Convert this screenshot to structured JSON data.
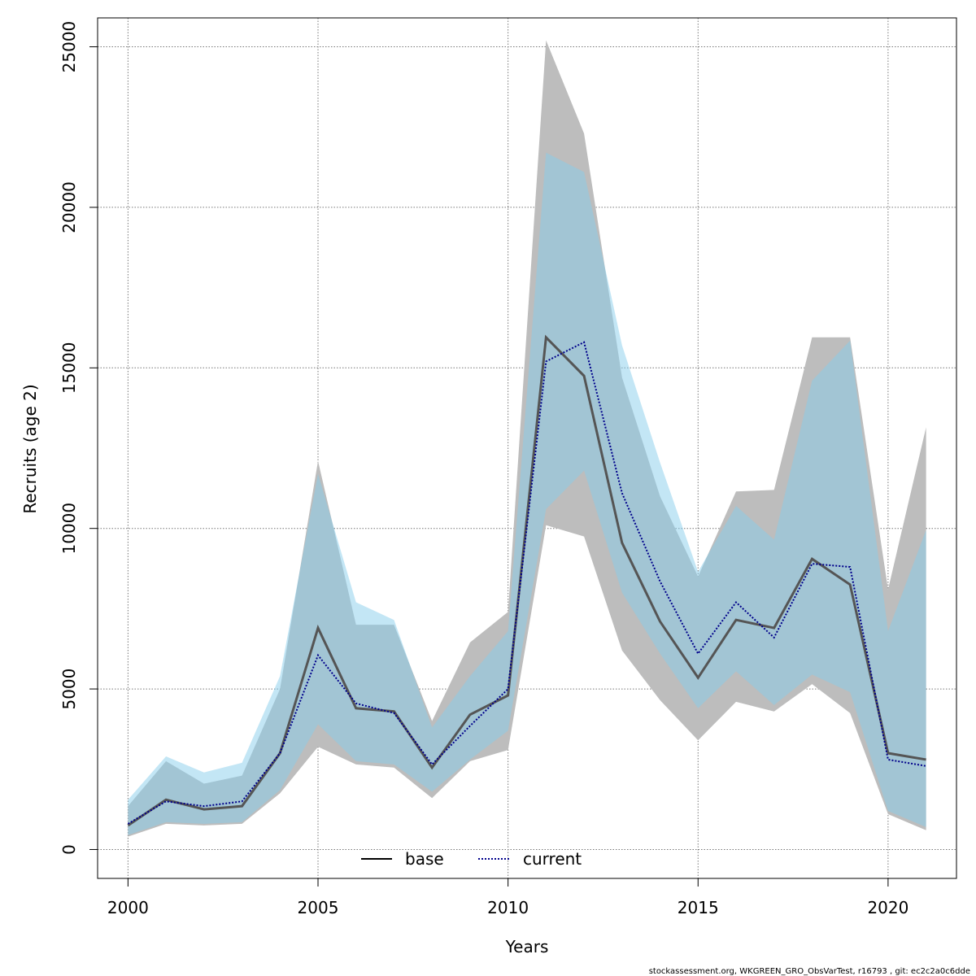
{
  "chart_data": {
    "type": "line",
    "xlabel": "Years",
    "ylabel": "Recruits (age 2)",
    "xlim": [
      1999.2,
      2021.8
    ],
    "ylim": [
      -900,
      25900
    ],
    "x_ticks": [
      2000,
      2005,
      2010,
      2015,
      2020
    ],
    "y_ticks": [
      0,
      5000,
      10000,
      15000,
      20000,
      25000
    ],
    "grid": true,
    "legend_position": "bottom-center",
    "x": [
      2000,
      2001,
      2002,
      2003,
      2004,
      2005,
      2006,
      2007,
      2008,
      2009,
      2010,
      2011,
      2012,
      2013,
      2014,
      2015,
      2016,
      2017,
      2018,
      2019,
      2020,
      2021
    ],
    "series": [
      {
        "name": "base",
        "line_style": "solid",
        "line_color": "#555555",
        "band_color": "#bdbdbd",
        "values": [
          750,
          1550,
          1250,
          1350,
          3000,
          6900,
          4400,
          4300,
          2550,
          4200,
          4800,
          15950,
          14750,
          9550,
          7100,
          5350,
          7150,
          6900,
          9050,
          8250,
          3000,
          2800
        ],
        "lower": [
          400,
          800,
          750,
          800,
          1750,
          3200,
          2650,
          2550,
          1600,
          2750,
          3100,
          10100,
          9750,
          6200,
          4650,
          3400,
          4600,
          4300,
          5150,
          4250,
          1100,
          600
        ],
        "upper": [
          1350,
          2750,
          2050,
          2300,
          5000,
          12100,
          7000,
          7000,
          4000,
          6450,
          7400,
          25200,
          22300,
          14700,
          11000,
          8500,
          11150,
          11200,
          15950,
          15950,
          8100,
          13150
        ]
      },
      {
        "name": "current",
        "line_style": "dotted",
        "line_color": "#00008b",
        "band_color": "#87ceeb",
        "values": [
          800,
          1500,
          1350,
          1500,
          3000,
          6050,
          4550,
          4250,
          2650,
          3850,
          5000,
          15200,
          15800,
          11100,
          8350,
          6100,
          7700,
          6600,
          8900,
          8800,
          2800,
          2600
        ],
        "lower": [
          450,
          850,
          800,
          850,
          1850,
          3900,
          2750,
          2650,
          1800,
          2800,
          3700,
          10600,
          11800,
          8000,
          6100,
          4400,
          5550,
          4500,
          5450,
          4900,
          1200,
          700
        ],
        "upper": [
          1550,
          2900,
          2400,
          2700,
          5400,
          11700,
          7700,
          7150,
          3800,
          5400,
          6800,
          21700,
          21100,
          15700,
          12050,
          8650,
          10700,
          9650,
          14600,
          15850,
          6800,
          9950
        ]
      }
    ]
  },
  "footer": {
    "text": "stockassessment.org, WKGREEN_GRO_ObsVarTest, r16793 , git: ec2c2a0c6dde"
  }
}
